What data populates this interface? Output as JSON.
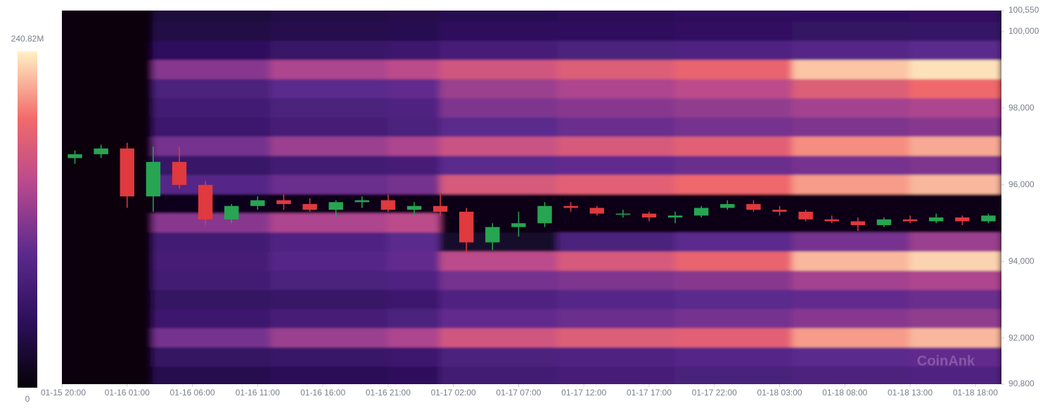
{
  "chart_data": {
    "type": "heatmap-candlestick",
    "watermark": "CoinAnk",
    "xlim": [
      "01-15 20:00",
      "01-18 20:00"
    ],
    "xticks": [
      "01-15 20:00",
      "01-16 01:00",
      "01-16 06:00",
      "01-16 11:00",
      "01-16 16:00",
      "01-16 21:00",
      "01-17 02:00",
      "01-17 07:00",
      "01-17 12:00",
      "01-17 17:00",
      "01-17 22:00",
      "01-18 03:00",
      "01-18 08:00",
      "01-18 13:00",
      "01-18 18:00"
    ],
    "ylim": [
      90800,
      100550
    ],
    "yticks": [
      {
        "value": 100550,
        "label": "100,550"
      },
      {
        "value": 100000,
        "label": "100,000"
      },
      {
        "value": 98000,
        "label": "98,000"
      },
      {
        "value": 96000,
        "label": "96,000"
      },
      {
        "value": 94000,
        "label": "94,000"
      },
      {
        "value": 92000,
        "label": "92,000"
      },
      {
        "value": 90800,
        "label": "90,800"
      }
    ],
    "colorbar": {
      "range": [
        0,
        240.82
      ],
      "ticks": [
        {
          "value": 240.82,
          "label": "240.82M"
        },
        0
      ],
      "colors": [
        "#050208",
        "#2d0f5c",
        "#5b2a8d",
        "#b5488f",
        "#f26a6a",
        "#fff1c4"
      ]
    },
    "heatmap": {
      "x": [
        "01-15 20:00",
        "01-16 03:00",
        "01-16 12:00",
        "01-16 21:00",
        "01-17 01:00",
        "01-17 10:00",
        "01-17 19:00",
        "01-18 04:00",
        "01-18 13:00"
      ],
      "rows": [
        {
          "price": 100500,
          "values": [
            3,
            30,
            35,
            38,
            42,
            45,
            48,
            50,
            52
          ]
        },
        {
          "price": 100000,
          "values": [
            3,
            35,
            40,
            42,
            48,
            50,
            52,
            55,
            58
          ]
        },
        {
          "price": 99500,
          "values": [
            4,
            50,
            60,
            65,
            75,
            80,
            85,
            90,
            95
          ]
        },
        {
          "price": 99000,
          "values": [
            5,
            120,
            140,
            150,
            165,
            175,
            185,
            225,
            235
          ]
        },
        {
          "price": 98500,
          "values": [
            4,
            80,
            95,
            100,
            130,
            140,
            150,
            175,
            190
          ]
        },
        {
          "price": 98000,
          "values": [
            4,
            70,
            80,
            85,
            115,
            120,
            125,
            135,
            140
          ]
        },
        {
          "price": 97500,
          "values": [
            4,
            65,
            75,
            80,
            95,
            105,
            110,
            115,
            120
          ]
        },
        {
          "price": 97000,
          "values": [
            5,
            110,
            130,
            140,
            160,
            170,
            180,
            205,
            215
          ]
        },
        {
          "price": 96500,
          "values": [
            4,
            60,
            70,
            75,
            95,
            100,
            105,
            110,
            115
          ]
        },
        {
          "price": 96000,
          "values": [
            4,
            90,
            105,
            110,
            170,
            180,
            190,
            210,
            220
          ]
        },
        {
          "price": 95500,
          "values": [
            3,
            12,
            8,
            6,
            8,
            8,
            8,
            8,
            8
          ]
        },
        {
          "price": 95000,
          "values": [
            3,
            120,
            140,
            150,
            10,
            8,
            8,
            8,
            8
          ]
        },
        {
          "price": 94500,
          "values": [
            3,
            70,
            85,
            95,
            20,
            80,
            95,
            110,
            130
          ]
        },
        {
          "price": 94000,
          "values": [
            4,
            75,
            90,
            100,
            150,
            170,
            185,
            220,
            230
          ]
        },
        {
          "price": 93500,
          "values": [
            4,
            70,
            80,
            85,
            110,
            115,
            120,
            135,
            140
          ]
        },
        {
          "price": 93000,
          "values": [
            4,
            55,
            60,
            65,
            85,
            90,
            95,
            100,
            105
          ]
        },
        {
          "price": 92500,
          "values": [
            4,
            65,
            75,
            80,
            100,
            105,
            110,
            120,
            125
          ]
        },
        {
          "price": 92000,
          "values": [
            5,
            110,
            130,
            140,
            165,
            175,
            180,
            210,
            220
          ]
        },
        {
          "price": 91500,
          "values": [
            4,
            55,
            60,
            65,
            80,
            85,
            90,
            95,
            100
          ]
        },
        {
          "price": 91000,
          "values": [
            3,
            40,
            45,
            48,
            70,
            75,
            78,
            80,
            85
          ]
        }
      ]
    },
    "candles": {
      "up_color": "#27a552",
      "down_color": "#e0393e",
      "x": [
        "01-15 20:00",
        "01-15 22:00",
        "01-16 00:00",
        "01-16 02:00",
        "01-16 04:00",
        "01-16 06:00",
        "01-16 08:00",
        "01-16 10:00",
        "01-16 12:00",
        "01-16 14:00",
        "01-16 16:00",
        "01-16 18:00",
        "01-16 20:00",
        "01-16 22:00",
        "01-17 00:00",
        "01-17 02:00",
        "01-17 04:00",
        "01-17 06:00",
        "01-17 08:00",
        "01-17 10:00",
        "01-17 12:00",
        "01-17 14:00",
        "01-17 16:00",
        "01-17 18:00",
        "01-17 20:00",
        "01-17 22:00",
        "01-18 00:00",
        "01-18 02:00",
        "01-18 04:00",
        "01-18 06:00",
        "01-18 08:00",
        "01-18 10:00",
        "01-18 12:00",
        "01-18 14:00",
        "01-18 16:00",
        "01-18 18:00"
      ],
      "open": [
        96700,
        96800,
        96950,
        95700,
        96600,
        96000,
        95100,
        95450,
        95600,
        95500,
        95350,
        95550,
        95600,
        95350,
        95450,
        95300,
        94500,
        94900,
        95000,
        95450,
        95400,
        95250,
        95250,
        95150,
        95200,
        95400,
        95500,
        95350,
        95300,
        95100,
        95050,
        94950,
        95100,
        95050,
        95150,
        95050
      ],
      "high": [
        96900,
        97050,
        97100,
        97000,
        97000,
        96100,
        95500,
        95700,
        95750,
        95650,
        95600,
        95700,
        95750,
        95550,
        95750,
        95400,
        95000,
        95300,
        95550,
        95550,
        95450,
        95350,
        95300,
        95300,
        95450,
        95600,
        95600,
        95450,
        95350,
        95200,
        95150,
        95150,
        95200,
        95250,
        95200,
        95250
      ],
      "low": [
        96550,
        96700,
        95400,
        95300,
        95900,
        94950,
        95000,
        95350,
        95350,
        95300,
        95150,
        95400,
        95300,
        95200,
        95200,
        94200,
        94300,
        94650,
        94900,
        95300,
        95200,
        95150,
        95050,
        95000,
        95150,
        95350,
        95300,
        95200,
        95050,
        95000,
        94800,
        94900,
        95000,
        95000,
        94950,
        95000
      ],
      "close": [
        96800,
        96950,
        95700,
        96600,
        96000,
        95100,
        95450,
        95600,
        95500,
        95350,
        95550,
        95600,
        95350,
        95450,
        95300,
        94500,
        94900,
        95000,
        95450,
        95400,
        95250,
        95250,
        95150,
        95200,
        95400,
        95500,
        95350,
        95300,
        95100,
        95050,
        94950,
        95100,
        95050,
        95150,
        95050,
        95200
      ]
    }
  }
}
